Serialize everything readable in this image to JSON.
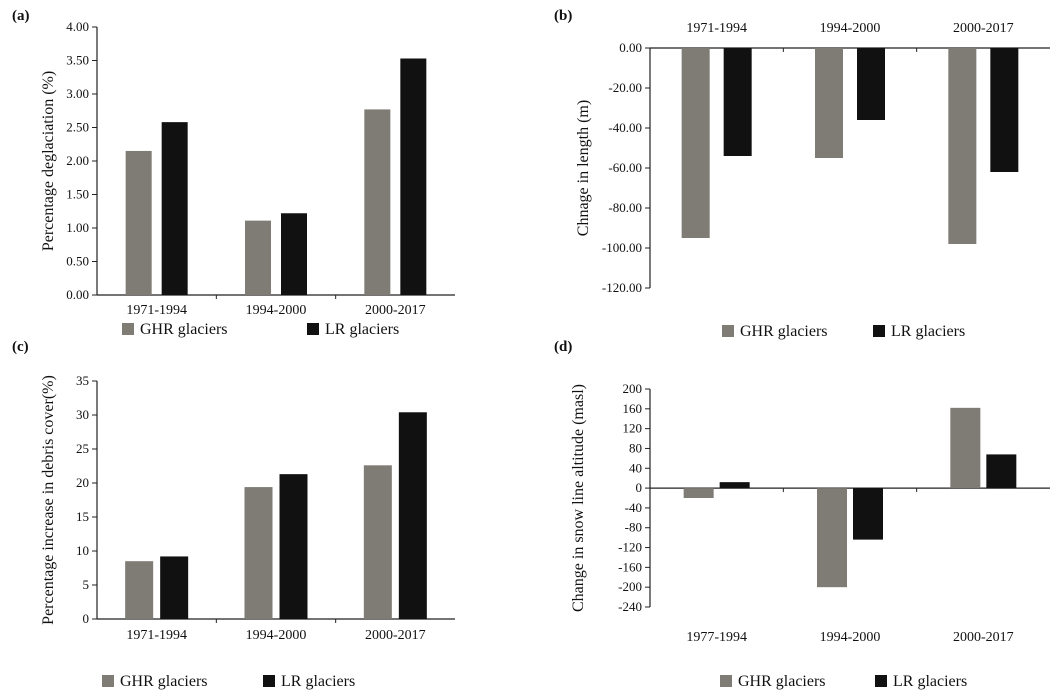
{
  "colors": {
    "ghr": "#7f7b75",
    "lr": "#111111",
    "axis": "#222222"
  },
  "chart_data": [
    {
      "panel": "(a)",
      "type": "bar",
      "categories": [
        "1971-1994",
        "1994-2000",
        "2000-2017"
      ],
      "series": [
        {
          "name": "GHR glaciers",
          "values": [
            2.15,
            1.11,
            2.77
          ]
        },
        {
          "name": "LR glaciers",
          "values": [
            2.58,
            1.22,
            3.53
          ]
        }
      ],
      "ylabel": "Percentage deglaciation (%)",
      "ylim": [
        0,
        4
      ],
      "yticks": [
        "0.00",
        "0.50",
        "1.00",
        "1.50",
        "2.00",
        "2.50",
        "3.00",
        "3.50",
        "4.00"
      ],
      "ytick_values": [
        0,
        0.5,
        1,
        1.5,
        2,
        2.5,
        3,
        3.5,
        4
      ],
      "category_position": "bottom",
      "legend": [
        "GHR glaciers",
        "LR glaciers"
      ]
    },
    {
      "panel": "(b)",
      "type": "bar",
      "categories": [
        "1971-1994",
        "1994-2000",
        "2000-2017"
      ],
      "series": [
        {
          "name": "GHR glaciers",
          "values": [
            -95,
            -55,
            -98
          ]
        },
        {
          "name": "LR glaciers",
          "values": [
            -54,
            -36,
            -62
          ]
        }
      ],
      "ylabel": "Chnage in length (m)",
      "ylim": [
        -120,
        0
      ],
      "yticks": [
        "0.00",
        "-20.00",
        "-40.00",
        "-60.00",
        "-80.00",
        "-100.00",
        "-120.00"
      ],
      "ytick_values": [
        0,
        -20,
        -40,
        -60,
        -80,
        -100,
        -120
      ],
      "category_position": "top",
      "legend": [
        "GHR glaciers",
        "LR glaciers"
      ]
    },
    {
      "panel": "(c)",
      "type": "bar",
      "categories": [
        "1971-1994",
        "1994-2000",
        "2000-2017"
      ],
      "series": [
        {
          "name": "GHR glaciers",
          "values": [
            8.5,
            19.4,
            22.6
          ]
        },
        {
          "name": "LR glaciers",
          "values": [
            9.2,
            21.3,
            30.4
          ]
        }
      ],
      "ylabel": "Percentage increase in debris cover(%)",
      "ylim": [
        0,
        35
      ],
      "yticks": [
        "0",
        "5",
        "10",
        "15",
        "20",
        "25",
        "30",
        "35"
      ],
      "ytick_values": [
        0,
        5,
        10,
        15,
        20,
        25,
        30,
        35
      ],
      "category_position": "bottom",
      "legend": [
        "GHR glaciers",
        "LR glaciers"
      ]
    },
    {
      "panel": "(d)",
      "type": "bar",
      "categories": [
        "1977-1994",
        "1994-2000",
        "2000-2017"
      ],
      "series": [
        {
          "name": "GHR glaciers",
          "values": [
            -20,
            -200,
            162
          ]
        },
        {
          "name": "LR glaciers",
          "values": [
            12,
            -104,
            68
          ]
        }
      ],
      "ylabel": "Change in snow line altitude (masl)",
      "ylim": [
        -240,
        200
      ],
      "yticks": [
        "200",
        "160",
        "120",
        "80",
        "40",
        "0",
        "-40",
        "-80",
        "-120",
        "-160",
        "-200",
        "-240"
      ],
      "ytick_values": [
        200,
        160,
        120,
        80,
        40,
        0,
        -40,
        -80,
        -120,
        -160,
        -200,
        -240
      ],
      "category_position": "bottom-outside",
      "legend": [
        "GHR glaciers",
        "LR glaciers"
      ]
    }
  ]
}
